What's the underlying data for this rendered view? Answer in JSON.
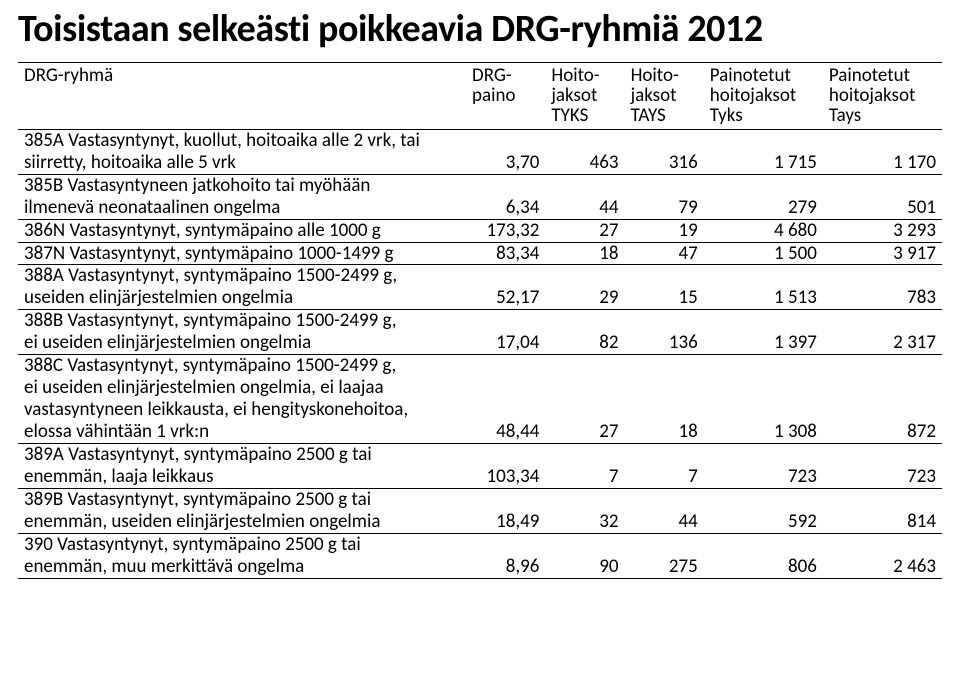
{
  "title": "Toisistaan selkeästi poikkeavia DRG-ryhmiä 2012",
  "columns": {
    "c0": "DRG-ryhmä",
    "c1": [
      "DRG-",
      "paino"
    ],
    "c2": [
      "Hoito-",
      "jaksot",
      "TYKS"
    ],
    "c3": [
      "Hoito-",
      "jaksot",
      "TAYS"
    ],
    "c4": [
      "Painotetut",
      "hoitojaksot",
      "Tyks"
    ],
    "c5": [
      "Painotetut",
      "hoitojaksot",
      "Tays"
    ]
  },
  "rows": [
    {
      "label": [
        "385A Vastasyntynyt, kuollut, hoitoaika alle 2 vrk, tai",
        "siirretty, hoitoaika alle 5 vrk"
      ],
      "v": [
        "3,70",
        "463",
        "316",
        "1 715",
        "1 170"
      ]
    },
    {
      "label": [
        "385B Vastasyntyneen jatkohoito tai myöhään",
        "ilmenevä neonataalinen ongelma"
      ],
      "v": [
        "6,34",
        "44",
        "79",
        "279",
        "501"
      ]
    },
    {
      "label": [
        "386N Vastasyntynyt, syntymäpaino alle 1000 g"
      ],
      "v": [
        "173,32",
        "27",
        "19",
        "4 680",
        "3 293"
      ]
    },
    {
      "label": [
        "387N Vastasyntynyt, syntymäpaino 1000-1499 g"
      ],
      "v": [
        "83,34",
        "18",
        "47",
        "1 500",
        "3 917"
      ]
    },
    {
      "label": [
        "388A Vastasyntynyt, syntymäpaino 1500-2499 g,",
        "useiden elinjärjestelmien ongelmia"
      ],
      "v": [
        "52,17",
        "29",
        "15",
        "1 513",
        "783"
      ]
    },
    {
      "label": [
        "388B Vastasyntynyt, syntymäpaino 1500-2499 g,",
        "ei useiden elinjärjestelmien ongelmia"
      ],
      "v": [
        "17,04",
        "82",
        "136",
        "1 397",
        "2 317"
      ]
    },
    {
      "label": [
        "388C Vastasyntynyt, syntymäpaino 1500-2499 g,",
        "ei useiden elinjärjestelmien ongelmia, ei laajaa",
        "vastasyntyneen leikkausta, ei hengityskonehoitoa,",
        "elossa vähintään 1 vrk:n"
      ],
      "v": [
        "48,44",
        "27",
        "18",
        "1 308",
        "872"
      ]
    },
    {
      "label": [
        "389A Vastasyntynyt, syntymäpaino 2500 g tai",
        "enemmän, laaja leikkaus"
      ],
      "v": [
        "103,34",
        "7",
        "7",
        "723",
        "723"
      ]
    },
    {
      "label": [
        "389B Vastasyntynyt, syntymäpaino 2500 g tai",
        "enemmän, useiden elinjärjestelmien ongelmia"
      ],
      "v": [
        "18,49",
        "32",
        "44",
        "592",
        "814"
      ]
    },
    {
      "label": [
        "390  Vastasyntynyt, syntymäpaino 2500 g tai",
        "enemmän,  muu merkittävä ongelma"
      ],
      "v": [
        "8,96",
        "90",
        "275",
        "806",
        "2 463"
      ]
    }
  ]
}
